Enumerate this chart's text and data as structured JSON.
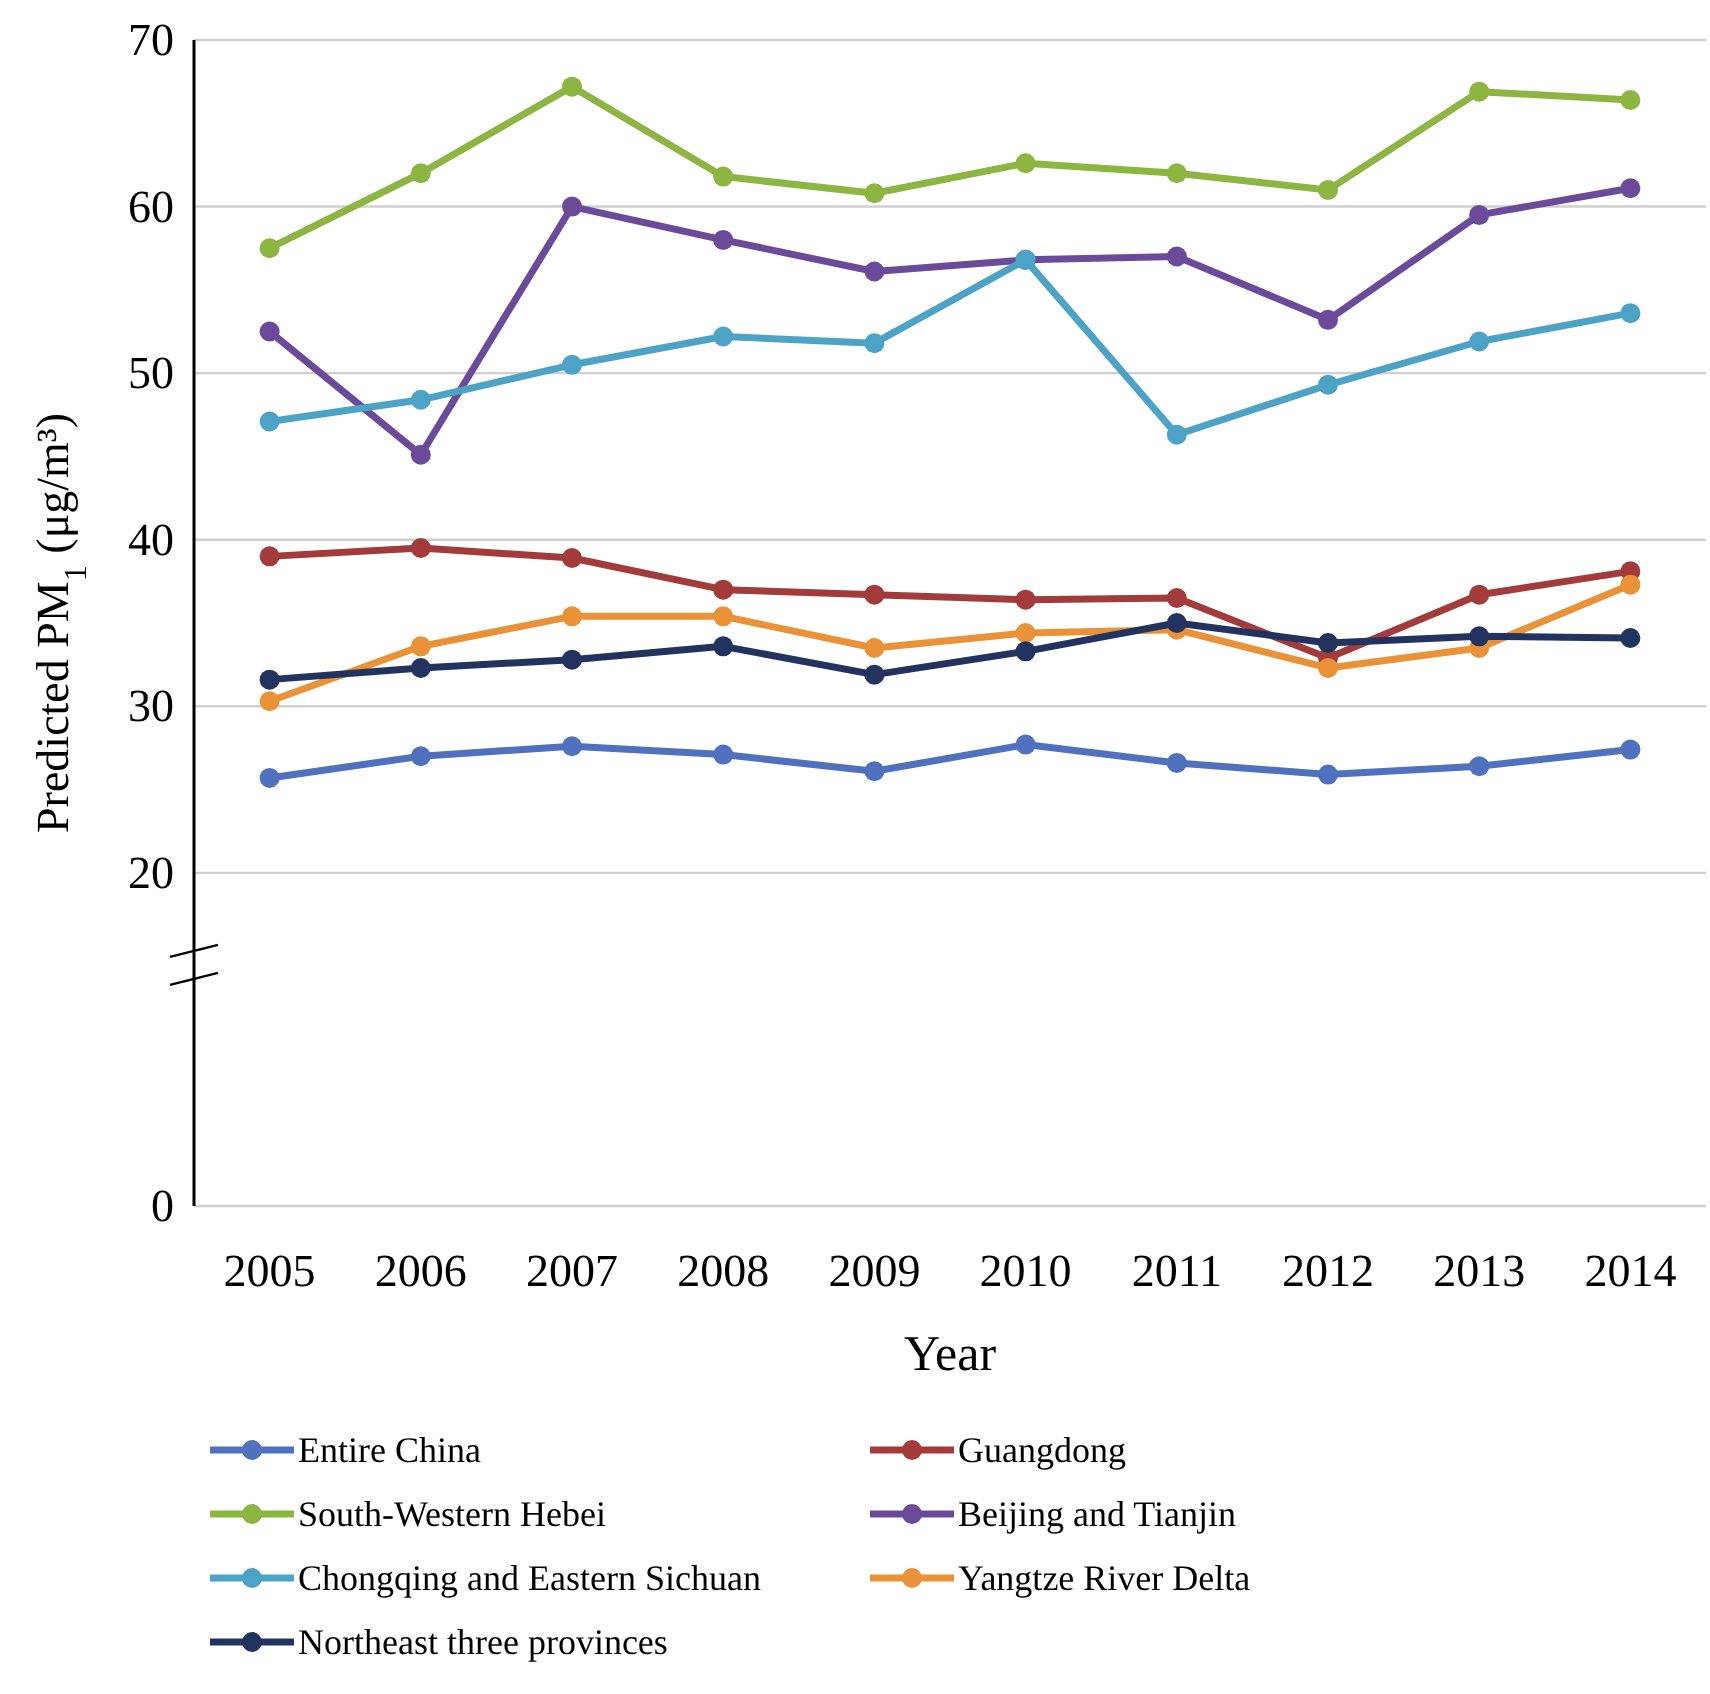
{
  "chart_data": {
    "type": "line",
    "xlabel": "Year",
    "ylabel": "Predicted PM$_{1}$ (μg/m³)",
    "categories": [
      "2005",
      "2006",
      "2007",
      "2008",
      "2009",
      "2010",
      "2011",
      "2012",
      "2013",
      "2014"
    ],
    "ylim": [
      0,
      70
    ],
    "yticks": [
      0,
      20,
      30,
      40,
      50,
      60,
      70
    ],
    "grid": "y",
    "legend": "bottom",
    "marker": "circle",
    "line_style": "solid",
    "series": [
      {
        "name": "Entire China",
        "color": "#4f71be",
        "values": [
          25.7,
          27,
          27.6,
          27.1,
          26.1,
          27.7,
          26.6,
          25.9,
          26.4,
          27.4
        ]
      },
      {
        "name": "Guangdong",
        "color": "#a33b3a",
        "values": [
          39,
          39.5,
          38.9,
          37,
          36.7,
          36.4,
          36.5,
          32.9,
          36.7,
          38.1
        ]
      },
      {
        "name": "South-Western Hebei",
        "color": "#8db542",
        "values": [
          57.5,
          62,
          67.2,
          61.8,
          60.8,
          62.6,
          62,
          61,
          66.9,
          66.4
        ]
      },
      {
        "name": "Beijing and Tianjin",
        "color": "#6c4a9a",
        "values": [
          52.5,
          45.1,
          60,
          58,
          56.1,
          56.8,
          57,
          53.2,
          59.5,
          61.1
        ]
      },
      {
        "name": "Chongqing and Eastern Sichuan",
        "color": "#4da3c6",
        "values": [
          47.1,
          48.4,
          50.5,
          52.2,
          51.8,
          56.8,
          46.3,
          49.3,
          51.9,
          53.6
        ]
      },
      {
        "name": "Yangtze River Delta",
        "color": "#ea9238",
        "values": [
          30.3,
          33.6,
          35.4,
          35.4,
          33.5,
          34.4,
          34.6,
          32.3,
          33.5,
          37.3
        ]
      },
      {
        "name": "Northeast three provinces",
        "color": "#22335f",
        "values": [
          31.6,
          32.3,
          32.8,
          33.6,
          31.9,
          33.3,
          35,
          33.8,
          34.2,
          34.1
        ]
      }
    ]
  }
}
